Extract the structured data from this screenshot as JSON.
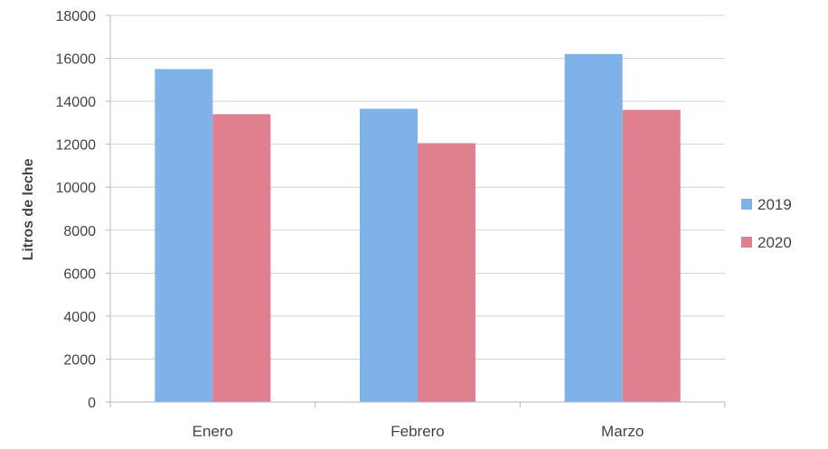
{
  "chart_data": {
    "type": "bar",
    "categories": [
      "Enero",
      "Febrero",
      "Marzo"
    ],
    "series": [
      {
        "name": "2019",
        "values": [
          15500,
          13650,
          16200
        ],
        "color": "#7fb2e8"
      },
      {
        "name": "2020",
        "values": [
          13400,
          12050,
          13600
        ],
        "color": "#e07f8e"
      }
    ],
    "title": "",
    "xlabel": "",
    "ylabel": "Litros de leche",
    "ylim": [
      0,
      18000
    ],
    "yticks": [
      0,
      2000,
      4000,
      6000,
      8000,
      10000,
      12000,
      14000,
      16000,
      18000
    ],
    "grid": true,
    "legend_position": "right"
  }
}
